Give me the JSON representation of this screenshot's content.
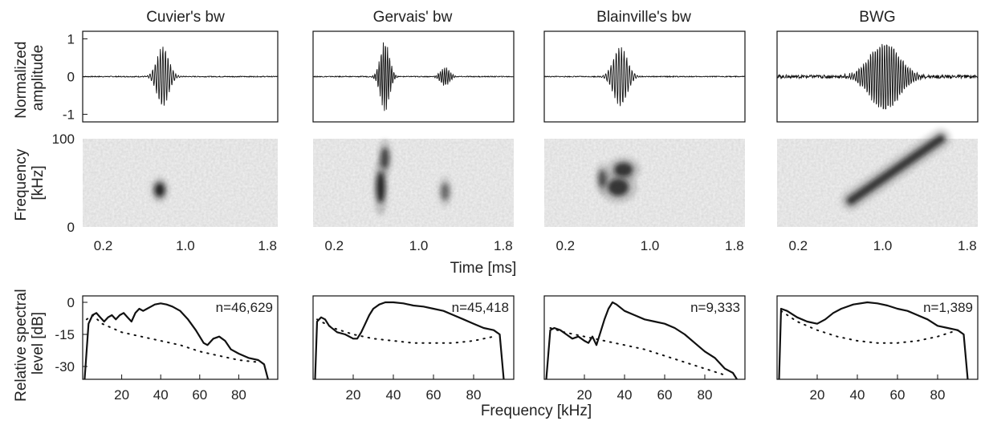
{
  "figure": {
    "species": [
      "Cuvier's bw",
      "Gervais' bw",
      "Blainville's bw",
      "BWG"
    ],
    "row_labels": {
      "waveform": [
        "Normalized",
        "amplitude"
      ],
      "spectrogram": [
        "Frequency",
        "[kHz]"
      ],
      "spectrum": [
        "Relative spectral",
        "level [dB]"
      ]
    },
    "time_axis_label": "Time [ms]",
    "frequency_axis_label": "Frequency [kHz]",
    "sample_counts": [
      "n=46,629",
      "n=45,418",
      "n=9,333",
      "n=1,389"
    ]
  },
  "chart_data": [
    {
      "type": "line",
      "panel": "waveform",
      "ylabel": "Normalized amplitude",
      "yticks": [
        "1",
        "0",
        "-1"
      ],
      "ylim": [
        -1.2,
        1.2
      ],
      "series": [
        {
          "name": "Cuvier's bw",
          "center_ms": 0.78,
          "width_ms": 0.08,
          "peak": 0.8,
          "carrier_ms": 0.025
        },
        {
          "name": "Gervais' bw",
          "center_ms": 0.68,
          "width_ms": 0.06,
          "peak": 0.95,
          "carrier_ms": 0.02,
          "echo": {
            "center_ms": 1.25,
            "width_ms": 0.06,
            "peak": 0.25
          }
        },
        {
          "name": "Blainville's bw",
          "center_ms": 0.72,
          "width_ms": 0.09,
          "peak": 0.8,
          "carrier_ms": 0.025
        },
        {
          "name": "BWG",
          "center_ms": 1.02,
          "width_ms": 0.2,
          "peak": 0.95,
          "carrier_ms": 0.022
        }
      ]
    },
    {
      "type": "heatmap",
      "panel": "spectrogram",
      "xlabel": "Time [ms]",
      "ylabel": "Frequency [kHz]",
      "xticks": [
        "0.2",
        "1.0",
        "1.8"
      ],
      "yticks": [
        "100",
        "0"
      ],
      "xlim": [
        0.0,
        1.9
      ],
      "ylim": [
        0,
        100
      ],
      "series": [
        {
          "name": "Cuvier's bw",
          "blobs": [
            {
              "t_ms": 0.75,
              "f_khz": 42,
              "dt": 0.05,
              "df": 8,
              "strength": 1.0
            }
          ]
        },
        {
          "name": "Gervais' bw",
          "blobs": [
            {
              "t_ms": 0.64,
              "f_khz": 45,
              "dt": 0.04,
              "df": 18,
              "strength": 1.0
            },
            {
              "t_ms": 0.68,
              "f_khz": 78,
              "dt": 0.04,
              "df": 12,
              "strength": 0.8
            },
            {
              "t_ms": 1.25,
              "f_khz": 40,
              "dt": 0.04,
              "df": 10,
              "strength": 0.6
            }
          ]
        },
        {
          "name": "Blainville's bw",
          "blobs": [
            {
              "t_ms": 0.7,
              "f_khz": 45,
              "dt": 0.1,
              "df": 10,
              "strength": 0.9
            },
            {
              "t_ms": 0.75,
              "f_khz": 65,
              "dt": 0.09,
              "df": 8,
              "strength": 0.9
            },
            {
              "t_ms": 0.55,
              "f_khz": 55,
              "dt": 0.04,
              "df": 10,
              "strength": 0.7
            }
          ]
        },
        {
          "name": "BWG",
          "sweep": {
            "t_start_ms": 0.7,
            "f_start_khz": 30,
            "t_end_ms": 1.55,
            "f_end_khz": 100,
            "strength": 0.9
          }
        }
      ]
    },
    {
      "type": "line",
      "panel": "spectrum",
      "xlabel": "Frequency [kHz]",
      "ylabel": "Relative spectral level [dB]",
      "xticks": [
        20,
        40,
        60,
        80
      ],
      "yticks": [
        "0",
        "-15",
        "-30"
      ],
      "xlim": [
        0,
        100
      ],
      "ylim": [
        -36,
        3
      ],
      "series": [
        {
          "name": "Cuvier's bw",
          "signal": [
            [
              1,
              -36
            ],
            [
              3,
              -10
            ],
            [
              5,
              -6
            ],
            [
              7,
              -5
            ],
            [
              9,
              -7
            ],
            [
              11,
              -9
            ],
            [
              13,
              -7
            ],
            [
              15,
              -6
            ],
            [
              17,
              -8
            ],
            [
              19,
              -6
            ],
            [
              21,
              -5
            ],
            [
              23,
              -7
            ],
            [
              25,
              -9
            ],
            [
              27,
              -5
            ],
            [
              29,
              -3
            ],
            [
              31,
              -4
            ],
            [
              33,
              -3
            ],
            [
              35,
              -2
            ],
            [
              37,
              -1
            ],
            [
              40,
              -0.5
            ],
            [
              43,
              -1
            ],
            [
              46,
              -2
            ],
            [
              50,
              -4
            ],
            [
              54,
              -8
            ],
            [
              58,
              -13
            ],
            [
              62,
              -19
            ],
            [
              64,
              -20
            ],
            [
              67,
              -17
            ],
            [
              70,
              -16
            ],
            [
              73,
              -18
            ],
            [
              76,
              -22
            ],
            [
              80,
              -24
            ],
            [
              85,
              -26
            ],
            [
              90,
              -27
            ],
            [
              93,
              -29
            ],
            [
              95,
              -36
            ]
          ],
          "noise": [
            [
              2,
              -8
            ],
            [
              5,
              -6
            ],
            [
              10,
              -10
            ],
            [
              20,
              -14
            ],
            [
              30,
              -16
            ],
            [
              40,
              -18
            ],
            [
              50,
              -20
            ],
            [
              60,
              -23
            ],
            [
              70,
              -25
            ],
            [
              80,
              -27
            ],
            [
              90,
              -28
            ]
          ]
        },
        {
          "name": "Gervais' bw",
          "signal": [
            [
              1,
              -36
            ],
            [
              2,
              -9
            ],
            [
              4,
              -7
            ],
            [
              6,
              -8
            ],
            [
              8,
              -11
            ],
            [
              12,
              -14
            ],
            [
              16,
              -15
            ],
            [
              20,
              -17
            ],
            [
              22,
              -17
            ],
            [
              24,
              -14
            ],
            [
              26,
              -10
            ],
            [
              28,
              -6
            ],
            [
              30,
              -3
            ],
            [
              33,
              -1
            ],
            [
              36,
              0
            ],
            [
              40,
              0
            ],
            [
              45,
              -0.5
            ],
            [
              50,
              -1.5
            ],
            [
              55,
              -2
            ],
            [
              60,
              -3
            ],
            [
              65,
              -4
            ],
            [
              70,
              -6
            ],
            [
              75,
              -8
            ],
            [
              80,
              -10
            ],
            [
              85,
              -12
            ],
            [
              90,
              -13
            ],
            [
              93,
              -15
            ],
            [
              95,
              -36
            ]
          ],
          "noise": [
            [
              2,
              -8
            ],
            [
              10,
              -12
            ],
            [
              20,
              -15
            ],
            [
              30,
              -17
            ],
            [
              40,
              -18
            ],
            [
              50,
              -19
            ],
            [
              60,
              -19
            ],
            [
              70,
              -19
            ],
            [
              80,
              -18
            ],
            [
              90,
              -16
            ]
          ]
        },
        {
          "name": "Blainville's bw",
          "signal": [
            [
              1,
              -36
            ],
            [
              3,
              -13
            ],
            [
              5,
              -12
            ],
            [
              8,
              -13
            ],
            [
              11,
              -15
            ],
            [
              14,
              -17
            ],
            [
              17,
              -16
            ],
            [
              20,
              -18
            ],
            [
              22,
              -19
            ],
            [
              24,
              -16
            ],
            [
              26,
              -20
            ],
            [
              28,
              -14
            ],
            [
              30,
              -8
            ],
            [
              32,
              -3
            ],
            [
              34,
              0
            ],
            [
              36,
              -1
            ],
            [
              40,
              -4
            ],
            [
              45,
              -6
            ],
            [
              50,
              -8
            ],
            [
              55,
              -9
            ],
            [
              60,
              -10
            ],
            [
              65,
              -12
            ],
            [
              70,
              -15
            ],
            [
              75,
              -19
            ],
            [
              80,
              -23
            ],
            [
              85,
              -26
            ],
            [
              90,
              -31
            ],
            [
              94,
              -33
            ],
            [
              96,
              -36
            ]
          ],
          "noise": [
            [
              3,
              -12
            ],
            [
              10,
              -14
            ],
            [
              20,
              -16
            ],
            [
              30,
              -18
            ],
            [
              40,
              -20
            ],
            [
              50,
              -22
            ],
            [
              60,
              -25
            ],
            [
              70,
              -28
            ],
            [
              80,
              -31
            ],
            [
              90,
              -34
            ]
          ]
        },
        {
          "name": "BWG",
          "signal": [
            [
              1,
              -36
            ],
            [
              2,
              -3
            ],
            [
              5,
              -4
            ],
            [
              10,
              -7
            ],
            [
              15,
              -9
            ],
            [
              20,
              -10
            ],
            [
              24,
              -8
            ],
            [
              28,
              -5
            ],
            [
              32,
              -3
            ],
            [
              38,
              -1
            ],
            [
              45,
              0
            ],
            [
              50,
              -0.5
            ],
            [
              55,
              -1.5
            ],
            [
              60,
              -3
            ],
            [
              65,
              -4
            ],
            [
              70,
              -6
            ],
            [
              75,
              -8
            ],
            [
              80,
              -11
            ],
            [
              85,
              -12
            ],
            [
              90,
              -13
            ],
            [
              93,
              -15
            ],
            [
              95,
              -36
            ]
          ],
          "noise": [
            [
              2,
              -4
            ],
            [
              10,
              -9
            ],
            [
              20,
              -13
            ],
            [
              30,
              -16
            ],
            [
              40,
              -18
            ],
            [
              50,
              -19
            ],
            [
              60,
              -19
            ],
            [
              70,
              -18
            ],
            [
              80,
              -16
            ],
            [
              90,
              -13
            ]
          ]
        }
      ]
    }
  ]
}
